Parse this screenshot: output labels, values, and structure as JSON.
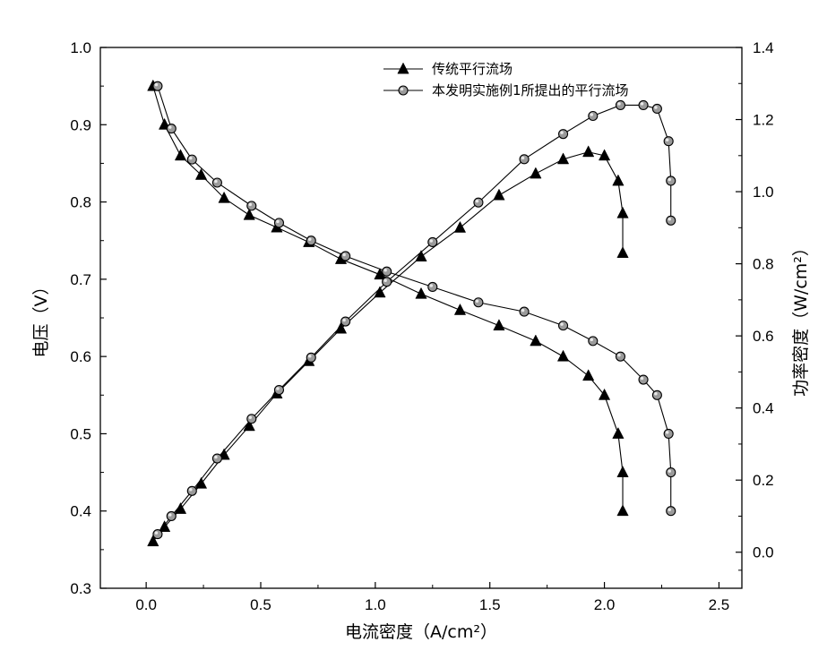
{
  "chart_data": {
    "type": "line",
    "xlabel": "电流密度（A/cm²）",
    "ylabel_left": "电压（V）",
    "ylabel_right": "功率密度（W/cm²）",
    "xlim": [
      -0.2,
      2.6
    ],
    "xticks": [
      "0.0",
      "0.5",
      "1.0",
      "1.5",
      "2.0",
      "2.5"
    ],
    "ylim_left": [
      0.3,
      1.0
    ],
    "yticks_left": [
      "0.3",
      "0.4",
      "0.5",
      "0.6",
      "0.7",
      "0.8",
      "0.9",
      "1.0"
    ],
    "ylim_right": [
      -0.1,
      1.4
    ],
    "yticks_right": [
      "0.0",
      "0.2",
      "0.4",
      "0.6",
      "0.8",
      "1.0",
      "1.2",
      "1.4"
    ],
    "legend_position": "top-center",
    "grid": false,
    "series": [
      {
        "name": "传统平行流场",
        "marker": "triangle",
        "axis": "left",
        "x": [
          0.03,
          0.08,
          0.15,
          0.24,
          0.34,
          0.45,
          0.57,
          0.71,
          0.85,
          1.02,
          1.2,
          1.37,
          1.54,
          1.7,
          1.82,
          1.93,
          2.0,
          2.06,
          2.08,
          2.08
        ],
        "y": [
          0.95,
          0.9,
          0.86,
          0.835,
          0.805,
          0.783,
          0.767,
          0.748,
          0.726,
          0.706,
          0.681,
          0.66,
          0.64,
          0.62,
          0.6,
          0.575,
          0.55,
          0.5,
          0.45,
          0.4
        ]
      },
      {
        "name": "本发明实施例1所提出的平行流场",
        "marker": "circle",
        "axis": "left",
        "x": [
          0.05,
          0.11,
          0.2,
          0.31,
          0.46,
          0.58,
          0.72,
          0.87,
          1.05,
          1.25,
          1.45,
          1.65,
          1.82,
          1.95,
          2.07,
          2.17,
          2.23,
          2.28,
          2.29,
          2.29
        ],
        "y": [
          0.95,
          0.895,
          0.855,
          0.825,
          0.795,
          0.773,
          0.75,
          0.73,
          0.71,
          0.69,
          0.67,
          0.658,
          0.64,
          0.62,
          0.6,
          0.57,
          0.55,
          0.5,
          0.45,
          0.4
        ]
      },
      {
        "name": "传统平行流场",
        "marker": "triangle",
        "axis": "right",
        "x": [
          0.03,
          0.08,
          0.15,
          0.24,
          0.34,
          0.45,
          0.57,
          0.71,
          0.85,
          1.02,
          1.2,
          1.37,
          1.54,
          1.7,
          1.82,
          1.93,
          2.0,
          2.06,
          2.08,
          2.08
        ],
        "y": [
          0.03,
          0.07,
          0.12,
          0.19,
          0.27,
          0.35,
          0.44,
          0.53,
          0.62,
          0.72,
          0.82,
          0.9,
          0.99,
          1.05,
          1.09,
          1.11,
          1.1,
          1.03,
          0.94,
          0.83
        ]
      },
      {
        "name": "本发明实施例1所提出的平行流场",
        "marker": "circle",
        "axis": "right",
        "x": [
          0.05,
          0.11,
          0.2,
          0.31,
          0.46,
          0.58,
          0.72,
          0.87,
          1.05,
          1.25,
          1.45,
          1.65,
          1.82,
          1.95,
          2.07,
          2.17,
          2.23,
          2.28,
          2.29,
          2.29
        ],
        "y": [
          0.05,
          0.1,
          0.17,
          0.26,
          0.37,
          0.45,
          0.54,
          0.64,
          0.75,
          0.86,
          0.97,
          1.09,
          1.16,
          1.21,
          1.24,
          1.24,
          1.23,
          1.14,
          1.03,
          0.92
        ]
      }
    ]
  }
}
